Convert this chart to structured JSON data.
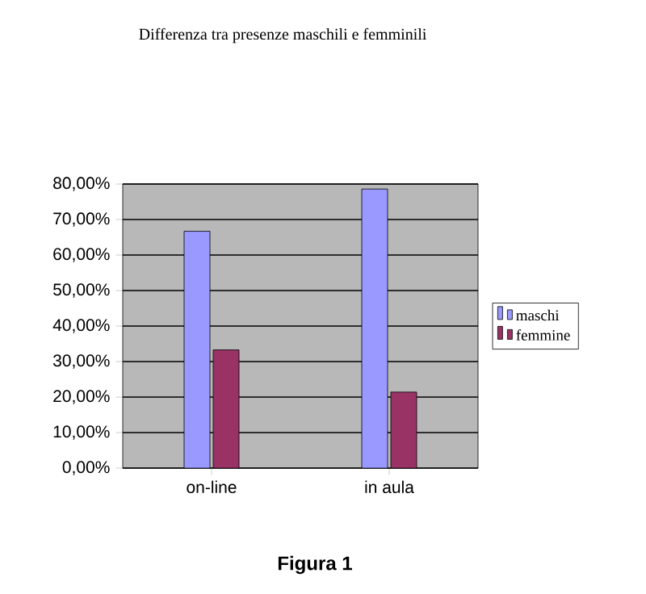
{
  "chart_data": {
    "type": "bar",
    "title": "Differenza tra presenze maschili e femminili",
    "categories": [
      "on-line",
      "in aula"
    ],
    "series": [
      {
        "name": "maschi",
        "color": "#9999ff",
        "values": [
          66.7,
          78.6
        ]
      },
      {
        "name": "femmine",
        "color": "#993366",
        "values": [
          33.3,
          21.4
        ]
      }
    ],
    "ylim": [
      0,
      80
    ],
    "yticks": [
      {
        "value": 0,
        "label": "0,00%"
      },
      {
        "value": 10,
        "label": "10,00%"
      },
      {
        "value": 20,
        "label": "20,00%"
      },
      {
        "value": 30,
        "label": "30,00%"
      },
      {
        "value": 40,
        "label": "40,00%"
      },
      {
        "value": 50,
        "label": "50,00%"
      },
      {
        "value": 60,
        "label": "60,00%"
      },
      {
        "value": 70,
        "label": "70,00%"
      },
      {
        "value": 80,
        "label": "80,00%"
      }
    ],
    "grid": "y",
    "legend": "right",
    "annotations": [
      "Figura 1"
    ]
  }
}
